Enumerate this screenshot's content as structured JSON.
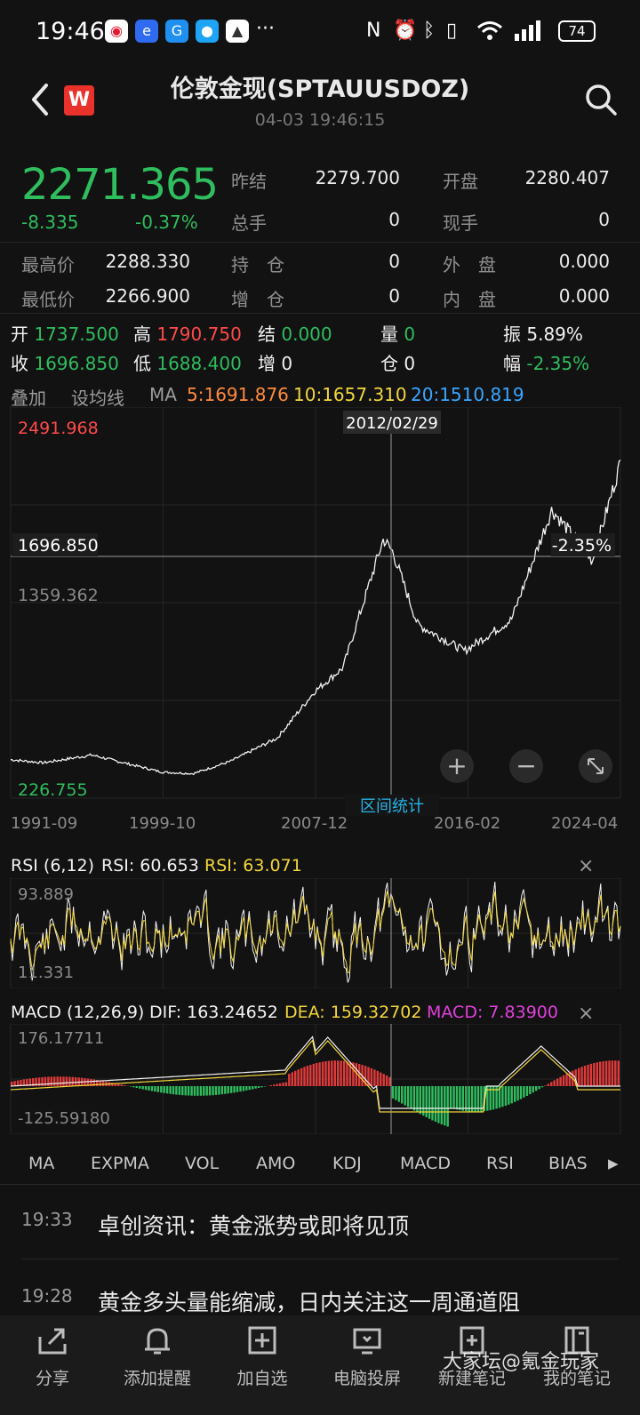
{
  "status_bar": {
    "time": "19:46",
    "battery": "74",
    "more": "···"
  },
  "header": {
    "title": "伦敦金现(SPTAUUSDOZ)",
    "timestamp": "04-03 19:46:15",
    "logo": "W"
  },
  "quote": {
    "price": "2271.365",
    "change": "-8.335",
    "change_pct": "-0.37%",
    "fields": [
      {
        "label": "昨结",
        "value": "2279.700"
      },
      {
        "label": "开盘",
        "value": "2280.407"
      },
      {
        "label": "总手",
        "value": "0"
      },
      {
        "label": "现手",
        "value": "0"
      },
      {
        "label": "最高价",
        "value": "2288.330"
      },
      {
        "label": "持　仓",
        "value": "0"
      },
      {
        "label": "外　盘",
        "value": "0.000"
      },
      {
        "label": "最低价",
        "value": "2266.900"
      },
      {
        "label": "增　仓",
        "value": "0"
      },
      {
        "label": "内　盘",
        "value": "0.000"
      }
    ]
  },
  "period_info": {
    "open_label": "开",
    "open": "1737.500",
    "high_label": "高",
    "high": "1790.750",
    "settle_label": "结",
    "settle": "0.000",
    "vol_label": "量",
    "vol": "0",
    "amp_label": "振",
    "amp": "5.89%",
    "close_label": "收",
    "close": "1696.850",
    "low_label": "低",
    "low": "1688.400",
    "inc_label": "增",
    "inc": "0",
    "pos_label": "仓",
    "pos": "0",
    "range_label": "幅",
    "range": "-2.35%"
  },
  "indicators": {
    "overlay": "叠加",
    "set_ma": "设均线",
    "ma_label": "MA",
    "ma5": "5:1691.876",
    "ma10": "10:1657.310",
    "ma20": "20:1510.819"
  },
  "chart_data": {
    "type": "line",
    "title": "",
    "x": [
      "1991-09",
      "1999-10",
      "2007-12",
      "2016-02",
      "2024-04"
    ],
    "ylim": [
      226.755,
      2491.968
    ],
    "y_ticks": [
      "2491.968",
      "1359.362",
      "226.755"
    ],
    "crosshair": {
      "date": "2012/02/29",
      "value": "1696.850",
      "pct": "-2.35%"
    },
    "series": [
      {
        "values": [
          {
            "x": "1991-09",
            "y": 360
          },
          {
            "x": "1993-06",
            "y": 340
          },
          {
            "x": "1996-01",
            "y": 390
          },
          {
            "x": "1999-10",
            "y": 280
          },
          {
            "x": "2001-06",
            "y": 270
          },
          {
            "x": "2003-06",
            "y": 350
          },
          {
            "x": "2005-12",
            "y": 500
          },
          {
            "x": "2007-12",
            "y": 800
          },
          {
            "x": "2009-06",
            "y": 950
          },
          {
            "x": "2011-08",
            "y": 1780
          },
          {
            "x": "2012-02",
            "y": 1697
          },
          {
            "x": "2013-06",
            "y": 1230
          },
          {
            "x": "2015-12",
            "y": 1060
          },
          {
            "x": "2018-06",
            "y": 1260
          },
          {
            "x": "2020-08",
            "y": 1970
          },
          {
            "x": "2022-10",
            "y": 1640
          },
          {
            "x": "2024-04",
            "y": 2270
          }
        ]
      }
    ]
  },
  "chart_buttons": {
    "stats": "区间统计",
    "zoom_in": "+",
    "zoom_out": "−"
  },
  "rsi": {
    "label": "RSI (6,12)",
    "rsi1": "RSI: 60.653",
    "rsi2": "RSI: 63.071",
    "max": "93.889",
    "min": "11.331",
    "close": "×"
  },
  "macd": {
    "label": "MACD (12,26,9)",
    "dif": "DIF: 163.24652",
    "dea": "DEA: 159.32702",
    "macd": "MACD: 7.83900",
    "max": "176.17711",
    "min": "-125.59180",
    "close": "×"
  },
  "tabs": [
    {
      "label": "MA",
      "active": true
    },
    {
      "label": "EXPMA",
      "active": false
    },
    {
      "label": "VOL",
      "active": false
    },
    {
      "label": "AMO",
      "active": false
    },
    {
      "label": "KDJ",
      "active": false
    },
    {
      "label": "MACD",
      "active": true
    },
    {
      "label": "RSI",
      "active": true
    },
    {
      "label": "BIAS",
      "active": false
    }
  ],
  "tab_more": "▶",
  "news": [
    {
      "time": "19:33",
      "title": "卓创资讯：黄金涨势或即将见顶"
    },
    {
      "time": "19:28",
      "title": "黄金多头量能缩减，日内关注这一周通道阻"
    }
  ],
  "bottom_bar": [
    {
      "label": "分享",
      "icon": "share-icon"
    },
    {
      "label": "添加提醒",
      "icon": "bell-icon"
    },
    {
      "label": "加自选",
      "icon": "add-favorite-icon"
    },
    {
      "label": "电脑投屏",
      "icon": "cast-screen-icon"
    },
    {
      "label": "新建笔记",
      "icon": "new-note-icon"
    },
    {
      "label": "我的笔记",
      "icon": "notebook-icon"
    }
  ],
  "watermark": "大家坛@氪金玩家"
}
